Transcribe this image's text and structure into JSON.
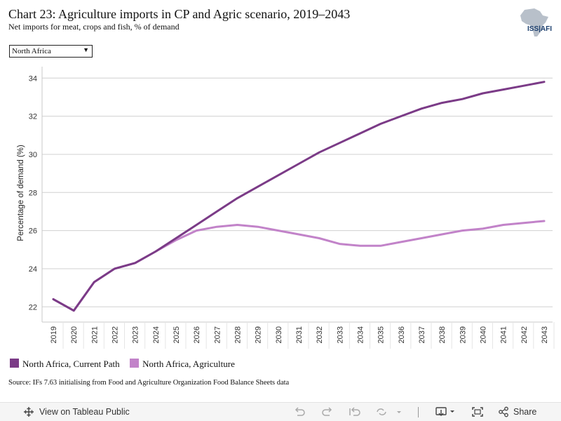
{
  "header": {
    "title": "Chart 23: Agriculture imports in CP and Agric scenario, 2019–2043",
    "subtitle": "Net imports for meat, crops and fish, % of demand",
    "logo_text": "ISS|AFI"
  },
  "filter": {
    "selected": "North Africa"
  },
  "source": "Source: IFs 7.63 initialising from Food and Agriculture Organization Food Balance Sheets data",
  "toolbar": {
    "view_label": "View on Tableau Public",
    "share_label": "Share"
  },
  "colors": {
    "current_path": "#7b3b87",
    "agriculture": "#c283c9",
    "grid": "#d0d0d0"
  },
  "chart_data": {
    "type": "line",
    "title": "",
    "xlabel": "",
    "ylabel": "Percentage of demand (%)",
    "x": [
      "2019",
      "2020",
      "2021",
      "2022",
      "2023",
      "2024",
      "2025",
      "2026",
      "2027",
      "2028",
      "2029",
      "2030",
      "2031",
      "2032",
      "2033",
      "2034",
      "2035",
      "2036",
      "2037",
      "2038",
      "2039",
      "2040",
      "2041",
      "2042",
      "2043"
    ],
    "ylim": [
      21.2,
      34.6
    ],
    "yticks": [
      22,
      24,
      26,
      28,
      30,
      32,
      34
    ],
    "grid": true,
    "legend_position": "bottom-left",
    "series": [
      {
        "name": "North Africa, Current Path",
        "color": "#7b3b87",
        "values": [
          22.4,
          21.8,
          23.3,
          24.0,
          24.3,
          24.9,
          25.6,
          26.3,
          27.0,
          27.7,
          28.3,
          28.9,
          29.5,
          30.1,
          30.6,
          31.1,
          31.6,
          32.0,
          32.4,
          32.7,
          32.9,
          33.2,
          33.4,
          33.6,
          33.8
        ]
      },
      {
        "name": "North Africa, Agriculture",
        "color": "#c283c9",
        "values": [
          22.4,
          21.8,
          23.3,
          24.0,
          24.3,
          24.9,
          25.5,
          26.0,
          26.2,
          26.3,
          26.2,
          26.0,
          25.8,
          25.6,
          25.3,
          25.2,
          25.2,
          25.4,
          25.6,
          25.8,
          26.0,
          26.1,
          26.3,
          26.4,
          26.5
        ]
      }
    ]
  }
}
